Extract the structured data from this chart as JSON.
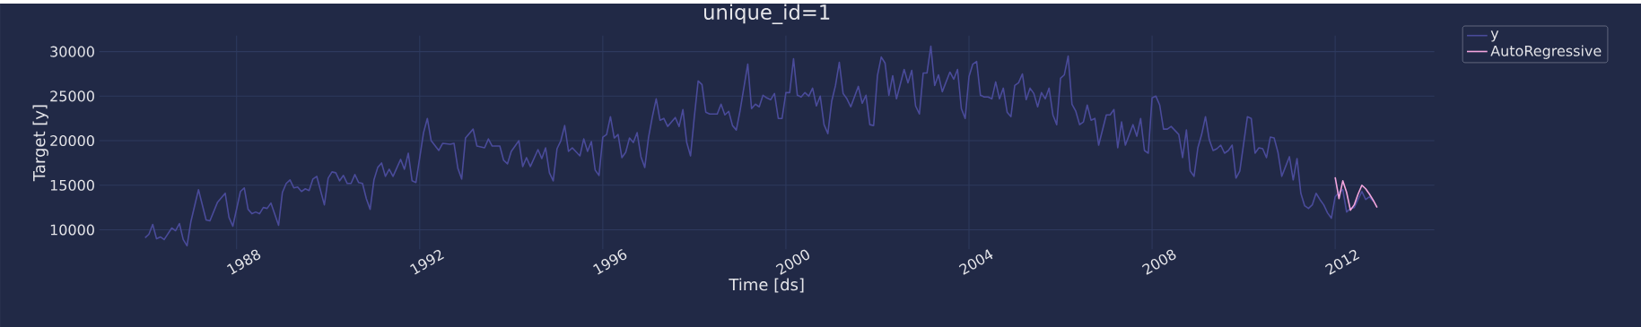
{
  "chart_data": {
    "type": "line",
    "title": "unique_id=1",
    "xlabel": "Time [ds]",
    "ylabel": "Target [y]",
    "xlim": [
      "1985-01",
      "2014-03"
    ],
    "ylim": [
      7800,
      31800
    ],
    "xticks": [
      {
        "value": "1988",
        "label": "1988"
      },
      {
        "value": "1992",
        "label": "1992"
      },
      {
        "value": "1996",
        "label": "1996"
      },
      {
        "value": "2000",
        "label": "2000"
      },
      {
        "value": "2004",
        "label": "2004"
      },
      {
        "value": "2008",
        "label": "2008"
      },
      {
        "value": "2012",
        "label": "2012"
      }
    ],
    "yticks": [
      10000,
      15000,
      20000,
      25000,
      30000
    ],
    "grid": true,
    "legend": "top right",
    "series": [
      {
        "name": "y",
        "color": "#4a4b9a",
        "x": [
          "1986-01",
          "1986-02",
          "1986-03",
          "1986-04",
          "1986-05",
          "1986-06",
          "1986-08",
          "1986-09",
          "1986-10",
          "1986-11",
          "1986-12",
          "1987-01",
          "1987-03",
          "1987-05",
          "1987-06",
          "1987-08",
          "1987-10",
          "1987-11",
          "1987-12",
          "1988-02",
          "1988-03",
          "1988-04",
          "1988-05",
          "1988-06",
          "1988-07",
          "1988-08",
          "1988-09",
          "1988-10",
          "1988-12",
          "1989-01",
          "1989-02",
          "1989-03",
          "1989-04",
          "1989-05",
          "1989-06",
          "1989-07",
          "1989-08",
          "1989-09",
          "1989-10",
          "1989-12",
          "1990-01",
          "1990-02",
          "1990-03",
          "1990-04",
          "1990-05",
          "1990-06",
          "1990-07",
          "1990-08",
          "1990-09",
          "1990-10",
          "1990-11",
          "1990-12",
          "1991-01",
          "1991-02",
          "1991-03",
          "1991-04",
          "1991-05",
          "1991-06",
          "1991-08",
          "1991-09",
          "1991-10",
          "1991-11",
          "1991-12",
          "1992-02",
          "1992-03",
          "1992-04",
          "1992-06",
          "1992-07",
          "1992-09",
          "1992-10",
          "1992-11",
          "1992-12",
          "1993-01",
          "1993-03",
          "1993-04",
          "1993-06",
          "1993-07",
          "1993-08",
          "1993-10",
          "1993-11",
          "1993-12",
          "1994-01",
          "1994-03",
          "1994-04",
          "1994-05",
          "1994-06",
          "1994-08",
          "1994-09",
          "1994-10",
          "1994-11",
          "1994-12",
          "1995-01",
          "1995-02",
          "1995-03",
          "1995-04",
          "1995-05",
          "1995-07",
          "1995-08",
          "1995-09",
          "1995-10",
          "1995-11",
          "1995-12",
          "1996-01",
          "1996-02",
          "1996-03",
          "1996-04",
          "1996-05",
          "1996-06",
          "1996-07",
          "1996-08",
          "1996-09",
          "1996-10",
          "1996-11",
          "1996-12",
          "1997-01",
          "1997-02",
          "1997-03",
          "1997-04",
          "1997-05",
          "1997-06",
          "1997-08",
          "1997-09",
          "1997-10",
          "1997-11",
          "1997-12",
          "1998-01",
          "1998-02",
          "1998-03",
          "1998-04",
          "1998-05",
          "1998-07",
          "1998-08",
          "1998-09",
          "1998-10",
          "1998-11",
          "1998-12",
          "1999-01",
          "1999-03",
          "1999-04",
          "1999-05",
          "1999-06",
          "1999-07",
          "1999-08",
          "1999-09",
          "1999-10",
          "1999-11",
          "1999-12",
          "2000-01",
          "2000-02",
          "2000-03",
          "2000-04",
          "2000-05",
          "2000-06",
          "2000-07",
          "2000-08",
          "2000-09",
          "2000-10",
          "2000-11",
          "2000-12",
          "2001-01",
          "2001-02",
          "2001-03",
          "2001-04",
          "2001-05",
          "2001-06",
          "2001-08",
          "2001-09",
          "2001-10",
          "2001-11",
          "2001-12",
          "2002-01",
          "2002-02",
          "2002-03",
          "2002-04",
          "2002-05",
          "2002-06",
          "2002-08",
          "2002-09",
          "2002-10",
          "2002-11",
          "2002-12",
          "2003-01",
          "2003-02",
          "2003-03",
          "2003-04",
          "2003-05",
          "2003-06",
          "2003-08",
          "2003-09",
          "2003-10",
          "2003-11",
          "2003-12",
          "2004-01",
          "2004-02",
          "2004-03",
          "2004-04",
          "2004-05",
          "2004-06",
          "2004-07",
          "2004-08",
          "2004-09",
          "2004-10",
          "2004-11",
          "2004-12",
          "2005-01",
          "2005-02",
          "2005-03",
          "2005-04",
          "2005-05",
          "2005-06",
          "2005-07",
          "2005-08",
          "2005-09",
          "2005-10",
          "2005-11",
          "2005-12",
          "2006-01",
          "2006-02",
          "2006-03",
          "2006-04",
          "2006-05",
          "2006-06",
          "2006-07",
          "2006-08",
          "2006-09",
          "2006-10",
          "2006-11",
          "2007-01",
          "2007-02",
          "2007-03",
          "2007-04",
          "2007-05",
          "2007-06",
          "2007-08",
          "2007-09",
          "2007-10",
          "2007-11",
          "2007-12",
          "2008-01",
          "2008-02",
          "2008-03",
          "2008-04",
          "2008-05",
          "2008-06",
          "2008-08",
          "2008-09",
          "2008-10",
          "2008-11",
          "2008-12",
          "2009-01",
          "2009-02",
          "2009-03",
          "2009-04",
          "2009-05",
          "2009-06",
          "2009-07",
          "2009-08",
          "2009-09",
          "2009-10",
          "2009-11",
          "2009-12",
          "2010-02",
          "2010-03",
          "2010-04",
          "2010-05",
          "2010-06",
          "2010-07",
          "2010-08",
          "2010-09",
          "2010-10",
          "2010-11",
          "2010-12",
          "2011-01",
          "2011-02",
          "2011-03",
          "2011-04",
          "2011-05",
          "2011-06",
          "2011-07",
          "2011-08",
          "2011-09",
          "2011-10",
          "2011-11",
          "2011-12",
          "2012-01",
          "2012-02",
          "2012-03",
          "2012-04",
          "2012-05",
          "2012-06",
          "2012-07",
          "2012-08",
          "2012-09",
          "2012-10",
          "2012-11"
        ],
        "values": [
          9100,
          9500,
          10600,
          9000,
          9200,
          8900,
          10200,
          9900,
          10700,
          8900,
          8200,
          10900,
          14500,
          11100,
          11000,
          13100,
          14100,
          11400,
          10400,
          14300,
          14700,
          12300,
          11800,
          12000,
          11800,
          12500,
          12400,
          13000,
          10500,
          14200,
          15200,
          15600,
          14700,
          14800,
          14300,
          14600,
          14400,
          15700,
          16000,
          12800,
          15800,
          16500,
          16400,
          15500,
          16100,
          15200,
          15200,
          16200,
          15300,
          15200,
          13500,
          12300,
          15600,
          17000,
          17500,
          16000,
          16800,
          16000,
          17900,
          16800,
          18600,
          15500,
          15300,
          20900,
          22500,
          20000,
          18900,
          19700,
          19600,
          19700,
          16900,
          15700,
          20300,
          21300,
          19400,
          19200,
          20200,
          19400,
          19400,
          17800,
          17400,
          18800,
          20000,
          17100,
          18100,
          17100,
          19000,
          18000,
          19200,
          16400,
          15500,
          19100,
          20000,
          21700,
          18800,
          19200,
          18300,
          20200,
          18800,
          19900,
          16700,
          16100,
          20400,
          20700,
          22700,
          20300,
          20700,
          18100,
          18700,
          20300,
          19800,
          20900,
          18200,
          17000,
          20400,
          22700,
          24700,
          22300,
          22500,
          21600,
          22600,
          21600,
          23500,
          19800,
          18300,
          22700,
          26700,
          26300,
          23200,
          23000,
          23000,
          24100,
          22900,
          23300,
          21700,
          21200,
          23400,
          28600,
          23600,
          24100,
          23800,
          25100,
          24800,
          24600,
          25300,
          22500,
          22500,
          25400,
          25400,
          29200,
          25100,
          24900,
          25400,
          25000,
          25900,
          23900,
          25000,
          21800,
          20800,
          24400,
          26200,
          28800,
          25300,
          24700,
          23800,
          26100,
          24200,
          25100,
          21800,
          21700,
          27300,
          29400,
          28700,
          25100,
          27300,
          24700,
          28000,
          26500,
          27900,
          23900,
          23000,
          27600,
          27600,
          30600,
          26200,
          27400,
          25500,
          27700,
          26900,
          28000,
          23600,
          22500,
          27200,
          28600,
          28900,
          25100,
          24900,
          24900,
          24700,
          26600,
          24700,
          25900,
          23200,
          22700,
          26200,
          26500,
          27500,
          24600,
          25900,
          25300,
          23800,
          25400,
          24700,
          25900,
          22900,
          21800,
          27000,
          27400,
          29500,
          24100,
          23300,
          21800,
          22100,
          24000,
          22300,
          22500,
          19500,
          22900,
          22900,
          23500,
          19200,
          22100,
          19500,
          21800,
          20500,
          22500,
          18900,
          18600,
          24800,
          25000,
          24000,
          21300,
          21300,
          21600,
          20700,
          18100,
          21200,
          16600,
          16000,
          19200,
          20700,
          22700,
          20100,
          18900,
          19100,
          19500,
          18600,
          18900,
          19500,
          15800,
          16600,
          22700,
          22500,
          18600,
          19200,
          19100,
          18100,
          20400,
          20300,
          18700,
          16000,
          17100,
          18200,
          15600,
          18000,
          14100,
          12700,
          12400,
          12800,
          14100,
          13400,
          12800,
          11900,
          11300,
          13700,
          14200,
          14500,
          12000,
          12400,
          12500,
          13400,
          14300,
          13400,
          13700,
          13200
        ]
      },
      {
        "name": "AutoRegressive",
        "color": "#f4a6de",
        "x": [
          "2012-01",
          "2012-02",
          "2012-03",
          "2012-04",
          "2012-05",
          "2012-06",
          "2012-07",
          "2012-08",
          "2012-09",
          "2012-10",
          "2012-11",
          "2012-12"
        ],
        "values": [
          15900,
          13500,
          15500,
          14200,
          12200,
          12800,
          14000,
          15000,
          14600,
          14000,
          13300,
          12500
        ]
      }
    ]
  }
}
